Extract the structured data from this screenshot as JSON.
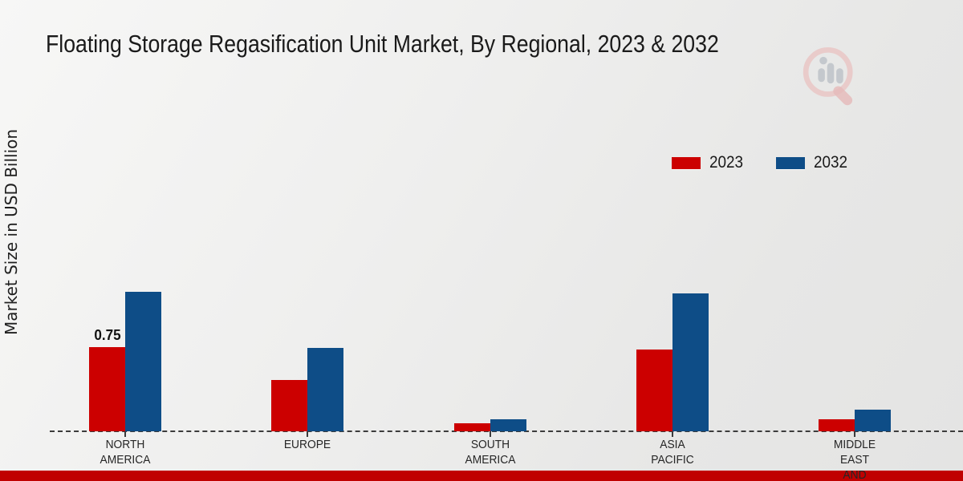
{
  "page": {
    "title": "Floating Storage Regasification Unit Market, By Regional, 2023 & 2032"
  },
  "colors": {
    "series_2023": "#CC0000",
    "series_2032": "#0E4D87",
    "footer_bar": "#C00000",
    "axis": "#3C3C3C",
    "text": "#1A1A1A",
    "logo_ring": "#E9C6C4",
    "logo_bars": "#C4C8CD"
  },
  "watermark": {
    "icon": "magnifier-bar-chart-logo-icon"
  },
  "chart_data": {
    "type": "bar",
    "title": "Floating Storage Regasification Unit Market, By Regional, 2023 & 2032",
    "xlabel": "",
    "ylabel": "Market Size in USD Billion",
    "categories": [
      "NORTH AMERICA",
      "EUROPE",
      "SOUTH AMERICA",
      "ASIA PACIFIC",
      "MIDDLE EAST AND"
    ],
    "category_label_lines": [
      [
        "NORTH",
        "AMERICA"
      ],
      [
        "EUROPE"
      ],
      [
        "SOUTH",
        "AMERICA"
      ],
      [
        "ASIA",
        "PACIFIC"
      ],
      [
        "MIDDLE",
        "EAST",
        "AND"
      ]
    ],
    "series": [
      {
        "name": "2023",
        "color_key": "series_2023",
        "values": [
          0.75,
          0.46,
          0.07,
          0.73,
          0.11
        ]
      },
      {
        "name": "2032",
        "color_key": "series_2032",
        "values": [
          1.24,
          0.74,
          0.11,
          1.23,
          0.19
        ]
      }
    ],
    "annotations": [
      {
        "series_index": 0,
        "category_index": 0,
        "text": "0.75"
      }
    ],
    "ylim": [
      0,
      1.6
    ],
    "grid": false,
    "y_axis_ticks_visible": false,
    "baseline_style": "dashed",
    "legend_position": "upper-right"
  }
}
